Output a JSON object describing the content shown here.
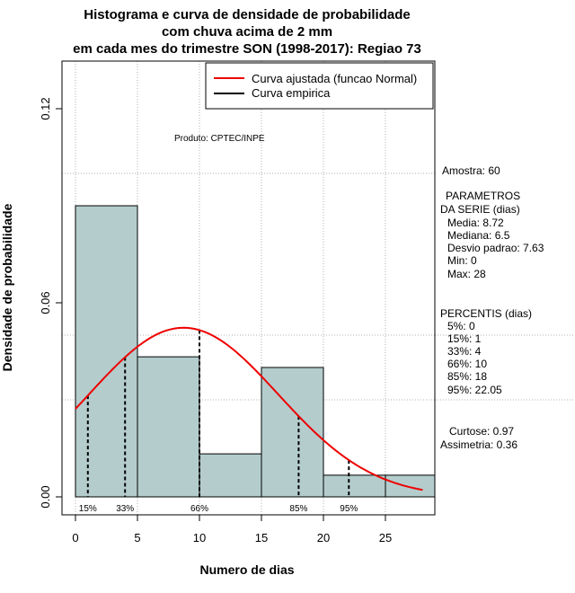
{
  "chart_data": {
    "type": "bar",
    "title_lines": [
      "Histograma e curva de densidade de probabilidade",
      "com chuva acima de 2 mm",
      "em cada mes do trimestre SON (1998-2017): Regiao 73"
    ],
    "xlabel": "Numero de dias",
    "ylabel": "Densidade de probabilidade",
    "xlim": [
      -1.5,
      29.5
    ],
    "ylim": [
      0,
      0.13
    ],
    "x_ticks": [
      0,
      5,
      10,
      15,
      20,
      25
    ],
    "y_ticks": [
      0.0,
      0.06,
      0.12
    ],
    "y_tick_labels": [
      "0.00",
      "0.06",
      "0.12"
    ],
    "bins": [
      {
        "x0": 0,
        "x1": 5,
        "density": 0.09
      },
      {
        "x0": 5,
        "x1": 10,
        "density": 0.0433
      },
      {
        "x0": 10,
        "x1": 15,
        "density": 0.0133
      },
      {
        "x0": 15,
        "x1": 20,
        "density": 0.04
      },
      {
        "x0": 20,
        "x1": 25,
        "density": 0.0067
      },
      {
        "x0": 25,
        "x1": 30,
        "density": 0.0067
      }
    ],
    "normal_fit": {
      "mean": 8.72,
      "sd": 7.63,
      "x_from": 0,
      "x_to": 28
    },
    "percentile_lines": [
      {
        "label": "15%",
        "x": 1
      },
      {
        "label": "33%",
        "x": 4
      },
      {
        "label": "66%",
        "x": 10
      },
      {
        "label": "85%",
        "x": 18
      },
      {
        "label": "95%",
        "x": 22.05
      }
    ],
    "legend": [
      {
        "label": "Curva ajustada (funcao Normal)",
        "color": "#ee0000"
      },
      {
        "label": "Curva empirica",
        "color": "#000000"
      }
    ],
    "credit": "Produto: CPTEC/INPE",
    "colors": {
      "bar_fill": "#b4cccc",
      "bar_stroke": "#000000",
      "curve": "#ee0000",
      "grid": "#b0b0b0"
    }
  },
  "stats": {
    "amostra": "Amostra: 60",
    "parametros_title_1": "PARAMETROS",
    "parametros_title_2": "DA SERIE (dias)",
    "media": "Media: 8.72",
    "mediana": "Mediana: 6.5",
    "desvio": "Desvio padrao: 7.63",
    "min": "Min: 0",
    "max": "Max: 28",
    "percentis_title": "PERCENTIS (dias)",
    "p5": "5%: 0",
    "p15": "15%: 1",
    "p33": "33%: 4",
    "p66": "66%: 10",
    "p85": "85%: 18",
    "p95": "95%: 22.05",
    "curtose": "Curtose: 0.97",
    "assimetria": "Assimetria: 0.36"
  }
}
